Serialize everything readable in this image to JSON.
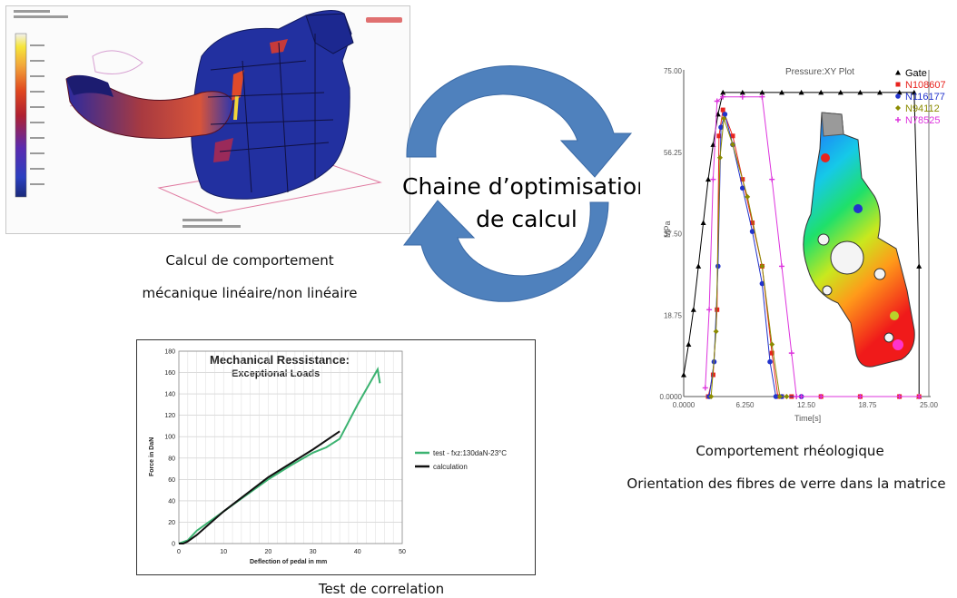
{
  "center": {
    "line1": "Chaine d’optimisation",
    "line2": "de calcul"
  },
  "colors": {
    "cycle_arrow": "#4f81bd",
    "test_series": "#3cb371",
    "calc_series": "#111111"
  },
  "fea_panel": {
    "image_kind": "pedal-fea-stress-contour",
    "caption_line1": "Calcul de comportement",
    "caption_line2": "mécanique linéaire/non linéaire"
  },
  "rheo_panel": {
    "caption_line1": "Comportement rhéologique",
    "caption_line2": "Orientation des fibres de verre dans la matrice"
  },
  "test_panel": {
    "caption": "Test de correlation"
  },
  "chart_data": [
    {
      "type": "line",
      "title": "Mechanical Ressistance:",
      "subtitle": "Exceptional Loads",
      "xlabel": "Deflection of  pedal in mm",
      "ylabel": "Force in DaN",
      "xlim": [
        0,
        50
      ],
      "ylim": [
        0,
        180
      ],
      "xticks": [
        "0",
        "10",
        "20",
        "30",
        "40",
        "50"
      ],
      "yticks": [
        "0",
        "20",
        "40",
        "60",
        "80",
        "100",
        "120",
        "140",
        "160",
        "180"
      ],
      "grid": true,
      "legend": "center-right",
      "series": [
        {
          "name": "test -  fxz:130daN-23°C",
          "color": "#3cb371",
          "x": [
            0,
            2,
            4,
            6,
            10,
            15,
            20,
            25,
            30,
            33,
            36,
            40,
            43,
            44.5,
            45
          ],
          "y": [
            0,
            3,
            12,
            18,
            30,
            45,
            60,
            73,
            85,
            90,
            98,
            130,
            152,
            163,
            150
          ]
        },
        {
          "name": "calculation",
          "color": "#111111",
          "x": [
            0,
            1,
            2,
            4,
            10,
            20,
            30,
            36
          ],
          "y": [
            0,
            0,
            2,
            8,
            30,
            62,
            88,
            105
          ]
        }
      ]
    },
    {
      "type": "scatter",
      "title": "Pressure:XY Plot",
      "xlabel": "Time[s]",
      "ylabel": "MPa",
      "xlim": [
        0,
        25
      ],
      "ylim": [
        0,
        75
      ],
      "xticks": [
        "0.0000",
        "6.250",
        "12.50",
        "18.75",
        "25.00"
      ],
      "yticks": [
        "0.0000",
        "18.75",
        "37.50",
        "56.25",
        "75.00"
      ],
      "legend": "top-right",
      "series": [
        {
          "name": "Gate",
          "color": "#000000",
          "marker": "triangle",
          "x": [
            0,
            0.5,
            1,
            1.5,
            2,
            2.5,
            3,
            3.5,
            4,
            6,
            8,
            10,
            12,
            14,
            16,
            18,
            20,
            22,
            23.5,
            24,
            24
          ],
          "y": [
            5,
            12,
            20,
            30,
            40,
            50,
            58,
            65,
            70,
            70,
            70,
            70,
            70,
            70,
            70,
            70,
            70,
            70,
            70,
            30,
            0
          ]
        },
        {
          "name": "N108607",
          "color": "#e8231e",
          "marker": "square",
          "x": [
            2.5,
            3,
            3.4,
            3.6,
            4,
            5,
            6,
            7,
            8,
            9,
            9.6,
            10,
            11,
            14,
            18,
            22,
            24
          ],
          "y": [
            0,
            5,
            20,
            60,
            66,
            60,
            50,
            40,
            30,
            10,
            0,
            0,
            0,
            0,
            0,
            0,
            0
          ]
        },
        {
          "name": "N116177",
          "color": "#2233cc",
          "marker": "circle",
          "x": [
            2.6,
            3.1,
            3.5,
            3.8,
            4.2,
            5,
            6,
            7,
            8,
            8.8,
            9.4,
            10,
            12
          ],
          "y": [
            0,
            8,
            30,
            62,
            65,
            58,
            48,
            38,
            26,
            8,
            0,
            0,
            0
          ]
        },
        {
          "name": "N94112",
          "color": "#8b8b00",
          "marker": "diamond",
          "x": [
            2.8,
            3.3,
            3.7,
            4.1,
            5,
            6.5,
            8,
            9,
            9.8,
            10.5
          ],
          "y": [
            0,
            15,
            55,
            64,
            58,
            46,
            30,
            12,
            0,
            0
          ]
        },
        {
          "name": "N78525",
          "color": "#dd33dd",
          "marker": "plus",
          "x": [
            2.2,
            2.6,
            3,
            3.4,
            4,
            6,
            8,
            9,
            10,
            11,
            11.5,
            12,
            14,
            18,
            22,
            24
          ],
          "y": [
            2,
            20,
            50,
            68,
            69,
            69,
            69,
            50,
            30,
            10,
            0,
            0,
            0,
            0,
            0,
            0
          ]
        }
      ]
    }
  ]
}
